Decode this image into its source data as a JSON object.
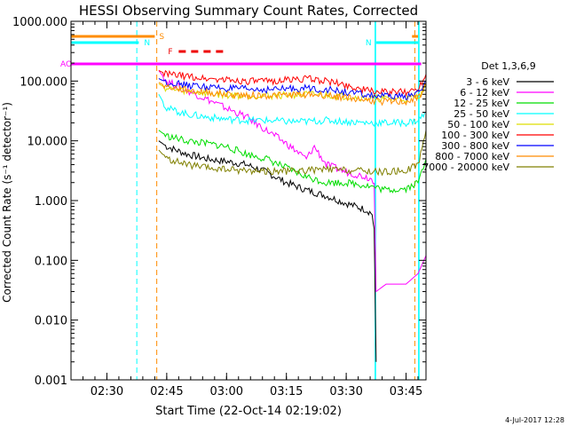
{
  "chart_data": {
    "type": "line",
    "title": "HESSI Observing Summary Count Rates, Corrected",
    "xlabel": "Start Time (22-Oct-14 02:19:02)",
    "ylabel": "Corrected Count Rate (s⁻¹ detector⁻¹)",
    "yscale": "log",
    "ylim": [
      0.001,
      1000
    ],
    "xlim_minutes": [
      21,
      57.5
    ],
    "x_ticks": [
      "02:30",
      "02:45",
      "03:00",
      "03:15",
      "03:30",
      "03:45"
    ],
    "x_tick_minutes": [
      30,
      45,
      60,
      75,
      90,
      105
    ],
    "y_ticks": [
      "0.001",
      "0.010",
      "0.100",
      "1.000",
      "10.000",
      "100.000",
      "1000.000"
    ],
    "y_tick_values": [
      0.001,
      0.01,
      0.1,
      1,
      10,
      100,
      1000
    ],
    "legend_title": "Det 1,3,6,9",
    "legend_placement": "right",
    "footer": "4-Jul-2017 12:28",
    "flags": [
      {
        "label": "S",
        "color": "#ff8c00",
        "start": 21,
        "end": 42
      },
      {
        "label": "N",
        "color": "#00ffff",
        "start": 21,
        "end": 38
      },
      {
        "label": "N",
        "color": "#00ffff",
        "start": 97.5,
        "end": 108
      },
      {
        "label": "F",
        "color": "#ee0000",
        "start": 48,
        "end": 60
      },
      {
        "label": "AO",
        "color": "#ff00ff",
        "start": 21,
        "end": 110
      },
      {
        "label": "",
        "color": "#ff8c00",
        "start": 106.5,
        "end": 108
      }
    ],
    "vlines": [
      {
        "minute": 37.5,
        "color": "#00ffff"
      },
      {
        "minute": 42.5,
        "color": "#ff8c00"
      },
      {
        "minute": 97.3,
        "color": "#00ffff"
      },
      {
        "minute": 107.2,
        "color": "#ff8c00"
      },
      {
        "minute": 108.2,
        "color": "#00ffff"
      }
    ],
    "series": [
      {
        "name": "3 - 6 keV",
        "color": "#000000",
        "x": [
          43,
          45,
          50,
          55,
          60,
          65,
          70,
          75,
          80,
          85,
          90,
          95,
          96.5,
          97,
          97.5
        ],
        "y": [
          10,
          8,
          6,
          5,
          4.5,
          4,
          3,
          2,
          1.5,
          1.2,
          0.9,
          0.7,
          0.6,
          0.3,
          0.002
        ]
      },
      {
        "name": "6 - 12 keV",
        "color": "#ff00ff",
        "x": [
          43,
          45,
          50,
          55,
          60,
          65,
          70,
          75,
          80,
          82,
          85,
          90,
          95,
          97,
          97.5,
          100,
          105,
          108,
          110
        ],
        "y": [
          150,
          100,
          70,
          50,
          35,
          25,
          15,
          9,
          5,
          8,
          4,
          3,
          2.5,
          2.2,
          0.03,
          0.04,
          0.04,
          0.06,
          0.12
        ]
      },
      {
        "name": "12 - 25 keV",
        "color": "#00dd00",
        "x": [
          43,
          45,
          50,
          55,
          60,
          65,
          70,
          75,
          80,
          85,
          90,
          95,
          100,
          105,
          108,
          110
        ],
        "y": [
          15,
          12,
          10,
          9,
          8,
          6,
          5,
          3.5,
          2.5,
          2,
          2,
          1.8,
          1.5,
          1.6,
          2,
          5
        ]
      },
      {
        "name": "25 - 50 keV",
        "color": "#00ffff",
        "x": [
          43,
          45,
          50,
          55,
          60,
          65,
          70,
          75,
          80,
          85,
          90,
          95,
          100,
          105,
          108,
          110
        ],
        "y": [
          60,
          35,
          28,
          25,
          23,
          22,
          22,
          21,
          21,
          22,
          21,
          20,
          20,
          20,
          22,
          30
        ]
      },
      {
        "name": "50 - 100 keV",
        "color": "#dddd00",
        "x": [
          43,
          45,
          50,
          55,
          60,
          65,
          70,
          75,
          80,
          85,
          90,
          95,
          100,
          105,
          108,
          110
        ],
        "y": [
          90,
          75,
          68,
          62,
          58,
          57,
          57,
          58,
          60,
          58,
          55,
          52,
          50,
          50,
          55,
          80
        ]
      },
      {
        "name": "100 - 300 keV",
        "color": "#ff0000",
        "x": [
          43,
          45,
          50,
          55,
          60,
          65,
          70,
          75,
          80,
          85,
          90,
          95,
          100,
          105,
          108,
          110
        ],
        "y": [
          150,
          130,
          120,
          110,
          105,
          100,
          98,
          105,
          110,
          100,
          85,
          70,
          65,
          65,
          75,
          130
        ]
      },
      {
        "name": "300 - 800 keV",
        "color": "#0000ff",
        "x": [
          43,
          45,
          50,
          55,
          60,
          65,
          70,
          75,
          80,
          85,
          90,
          95,
          100,
          105,
          108,
          110
        ],
        "y": [
          110,
          95,
          85,
          80,
          75,
          73,
          72,
          74,
          76,
          72,
          65,
          58,
          55,
          55,
          62,
          100
        ]
      },
      {
        "name": "800 - 7000 keV",
        "color": "#ff8c00",
        "x": [
          43,
          45,
          50,
          55,
          60,
          65,
          70,
          75,
          80,
          85,
          90,
          95,
          100,
          105,
          108,
          110
        ],
        "y": [
          95,
          80,
          70,
          65,
          60,
          58,
          57,
          58,
          60,
          58,
          53,
          48,
          45,
          45,
          52,
          85
        ]
      },
      {
        "name": "7000 - 20000 keV",
        "color": "#808000",
        "x": [
          43,
          45,
          50,
          55,
          60,
          65,
          70,
          75,
          80,
          85,
          90,
          95,
          100,
          105,
          108,
          110
        ],
        "y": [
          7,
          5,
          4,
          3.5,
          3.3,
          3.2,
          3.1,
          3.1,
          3.2,
          3.3,
          3.2,
          3.1,
          3,
          3.2,
          4,
          15
        ]
      }
    ]
  }
}
